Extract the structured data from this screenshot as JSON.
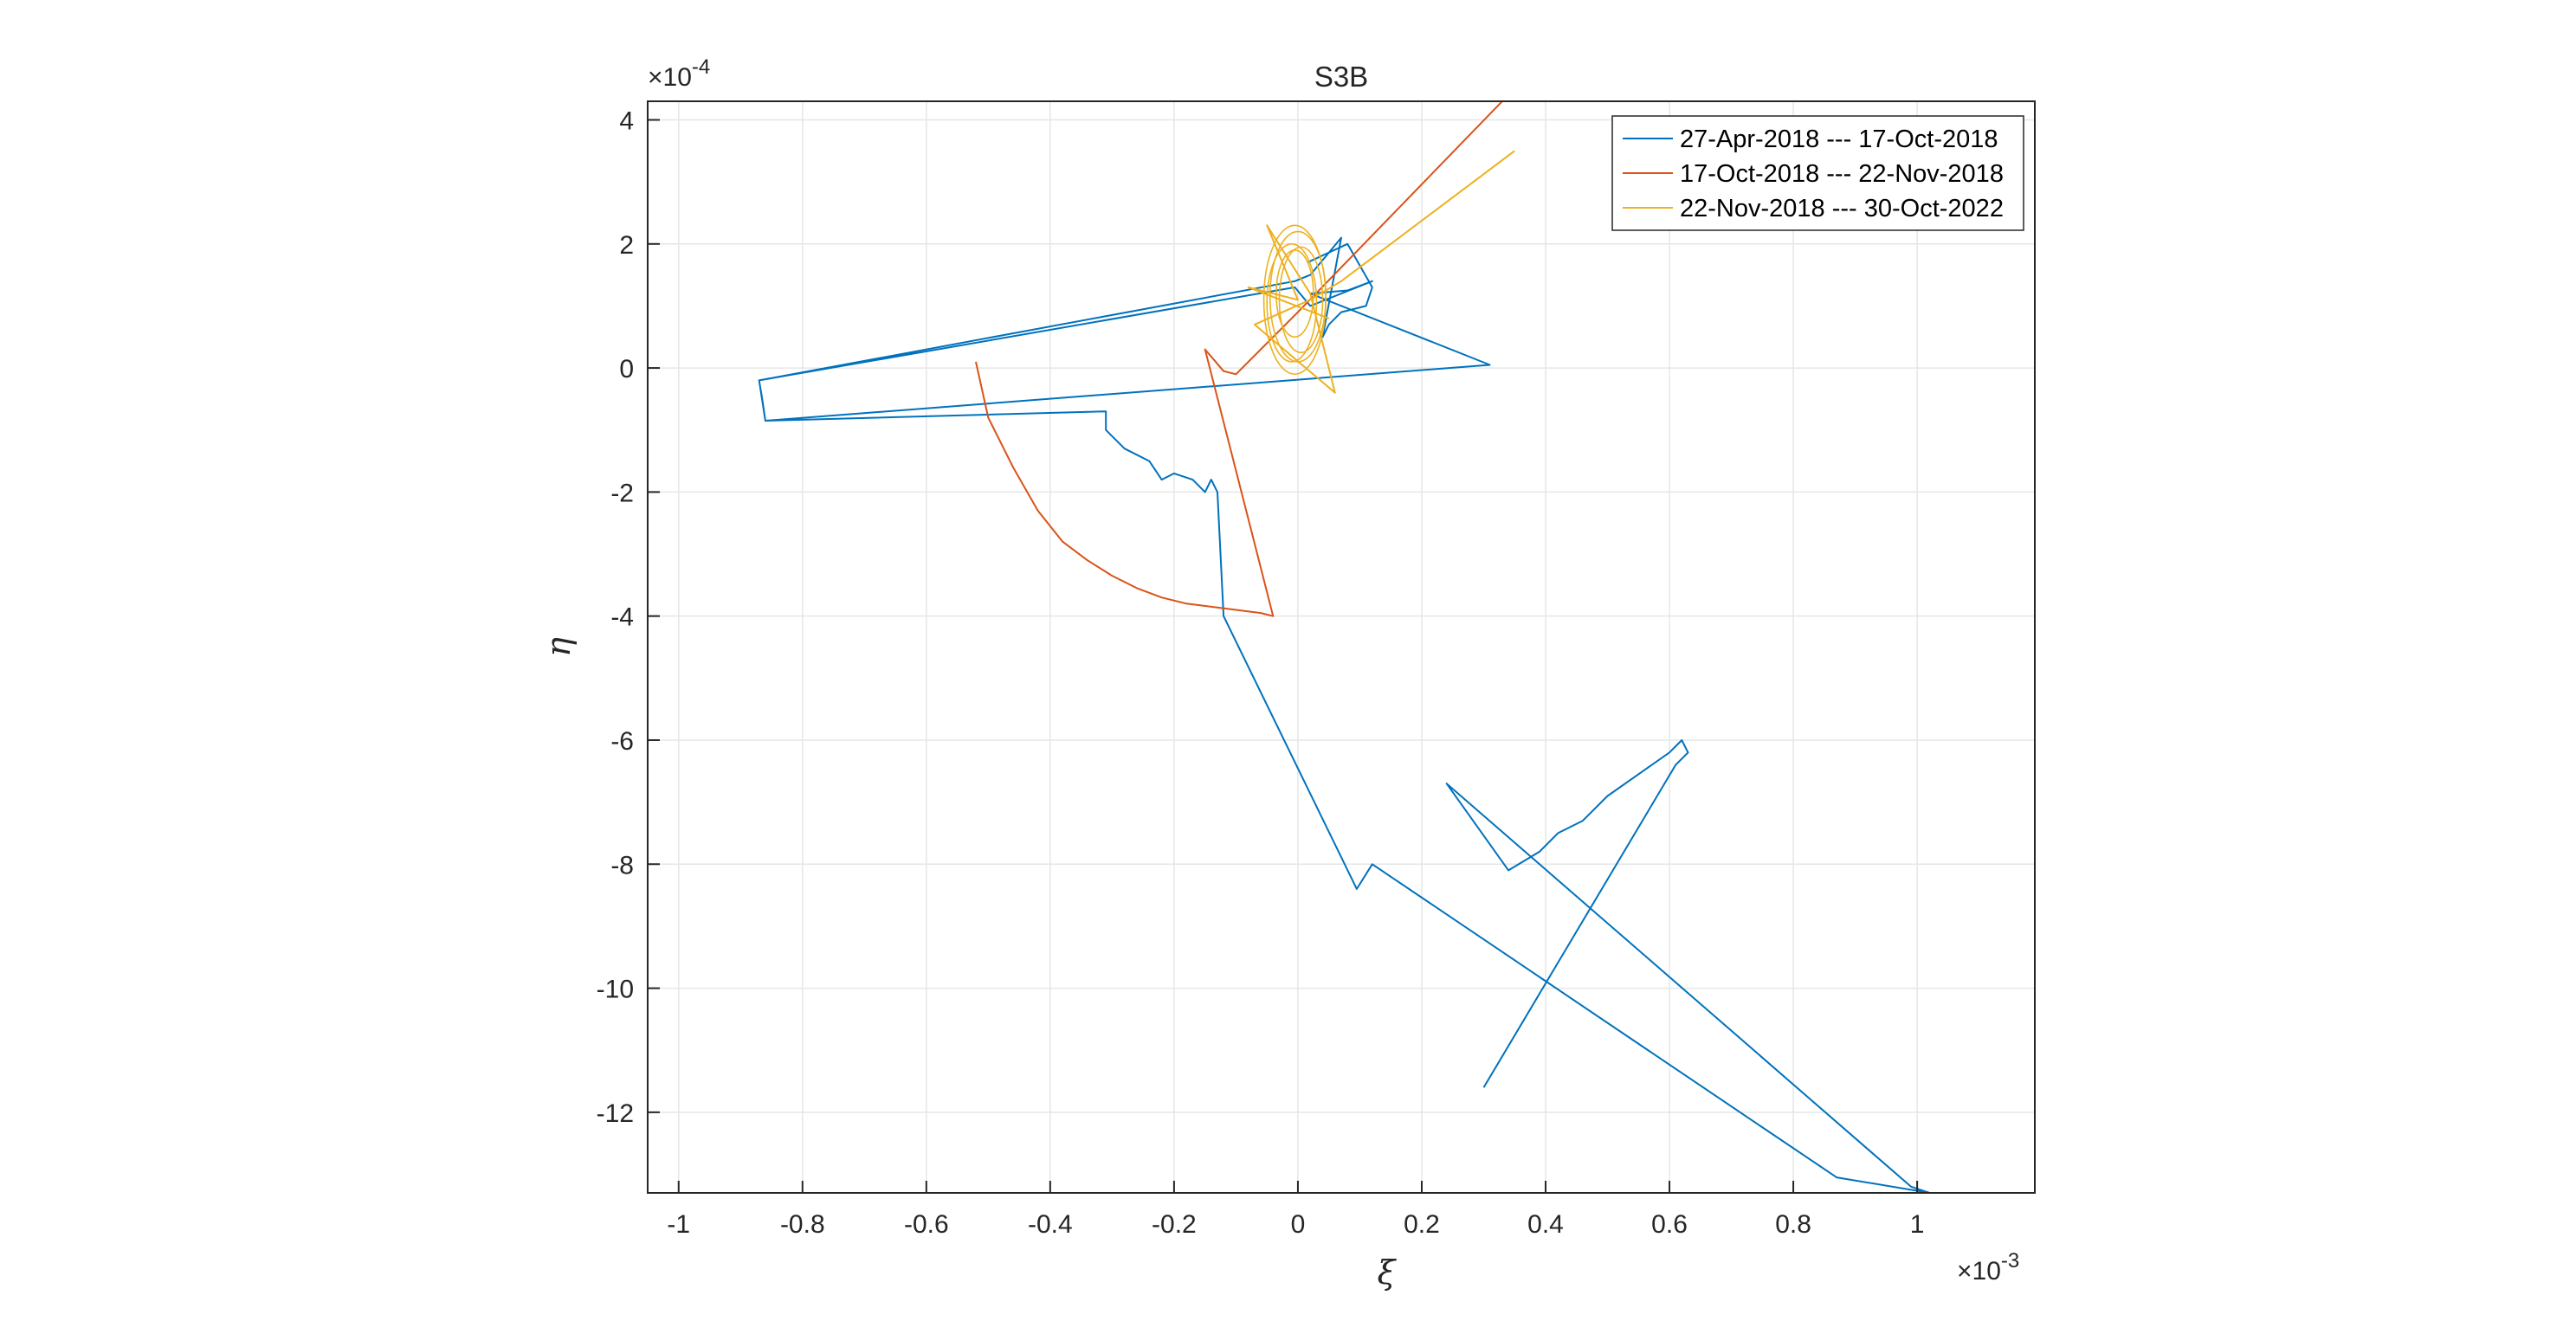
{
  "chart_data": {
    "type": "line",
    "title": "S3B",
    "xlabel": "ξ",
    "ylabel": "η",
    "x_exponent": "×10^-3",
    "y_exponent": "×10^-4",
    "x_exponent_parts": {
      "base": "×10",
      "power": "-3"
    },
    "y_exponent_parts": {
      "base": "×10",
      "power": "-4"
    },
    "xlim": [
      -1.05,
      1.19
    ],
    "ylim": [
      -13.3,
      4.3
    ],
    "x_ticks": [
      -1,
      -0.8,
      -0.6,
      -0.4,
      -0.2,
      0,
      0.2,
      0.4,
      0.6,
      0.8,
      1
    ],
    "x_tick_labels": [
      "-1",
      "-0.8",
      "-0.6",
      "-0.4",
      "-0.2",
      "0",
      "0.2",
      "0.4",
      "0.6",
      "0.8",
      "1"
    ],
    "y_ticks": [
      4,
      2,
      0,
      -2,
      -4,
      -6,
      -8,
      -10,
      -12
    ],
    "y_tick_labels": [
      "4",
      "2",
      "0",
      "-2",
      "-4",
      "-6",
      "-8",
      "-10",
      "-12"
    ],
    "grid": true,
    "legend_position": "top-right",
    "series": [
      {
        "name": "27-Apr-2018 --- 17-Oct-2018",
        "color": "#0072BD",
        "x": [
          0.015,
          0.08,
          0.12,
          0.11,
          0.07,
          0.05,
          0.04,
          0.07,
          0.02,
          -0.005,
          -0.87,
          -0.865,
          -0.86,
          0.31,
          0.02,
          0.08,
          0.12,
          0.02,
          -0.005,
          -0.87,
          -0.86,
          -0.31,
          -0.31,
          -0.3,
          -0.28,
          -0.24,
          -0.22,
          -0.2,
          -0.17,
          -0.15,
          -0.14,
          -0.13,
          -0.12,
          0.095,
          0.12,
          0.87,
          1.02,
          0.99,
          0.24,
          0.34,
          0.39,
          0.42,
          0.46,
          0.5,
          0.6,
          0.62,
          0.63,
          0.61,
          0.3
        ],
        "y": [
          1.7,
          2.0,
          1.3,
          1.0,
          0.9,
          0.7,
          0.5,
          2.1,
          1.5,
          1.4,
          -0.2,
          -0.5,
          -0.85,
          0.05,
          1.2,
          1.25,
          1.4,
          1.0,
          1.3,
          -0.2,
          -0.85,
          -0.7,
          -1.0,
          -1.1,
          -1.3,
          -1.5,
          -1.8,
          -1.7,
          -1.8,
          -2.0,
          -1.8,
          -2.0,
          -4.0,
          -8.4,
          -8.0,
          -13.05,
          -13.3,
          -13.2,
          -6.7,
          -8.1,
          -7.8,
          -7.5,
          -7.3,
          -6.9,
          -6.2,
          -6.0,
          -6.2,
          -6.4,
          -11.6
        ]
      },
      {
        "name": "17-Oct-2018 --- 22-Nov-2018",
        "color": "#D95319",
        "x": [
          -0.52,
          -0.5,
          -0.46,
          -0.42,
          -0.38,
          -0.34,
          -0.3,
          -0.26,
          -0.22,
          -0.18,
          -0.14,
          -0.1,
          -0.06,
          -0.04,
          -0.15,
          -0.12,
          -0.1,
          0.0,
          0.33
        ],
        "y": [
          0.1,
          -0.8,
          -1.6,
          -2.3,
          -2.8,
          -3.1,
          -3.35,
          -3.55,
          -3.7,
          -3.8,
          -3.85,
          -3.9,
          -3.95,
          -4.0,
          0.3,
          -0.05,
          -0.1,
          0.9,
          4.3
        ]
      },
      {
        "name": "22-Nov-2018 --- 30-Oct-2022",
        "color": "#EDB120",
        "x": [
          0.35,
          0.07,
          0.02,
          -0.07,
          0.06,
          0.02,
          -0.05,
          0.0,
          -0.08,
          0.05
        ],
        "y": [
          3.5,
          1.4,
          1.1,
          0.7,
          -0.4,
          1.2,
          2.3,
          1.1,
          1.3,
          0.8
        ],
        "loops": [
          {
            "cx": -0.005,
            "cy": 1.1,
            "rx": 0.05,
            "ry": 1.2
          },
          {
            "cx": 0.0,
            "cy": 1.15,
            "rx": 0.045,
            "ry": 1.05
          },
          {
            "cx": -0.01,
            "cy": 1.05,
            "rx": 0.04,
            "ry": 0.95
          },
          {
            "cx": 0.005,
            "cy": 1.1,
            "rx": 0.035,
            "ry": 0.85
          },
          {
            "cx": -0.005,
            "cy": 1.2,
            "rx": 0.03,
            "ry": 0.7
          }
        ]
      }
    ]
  }
}
